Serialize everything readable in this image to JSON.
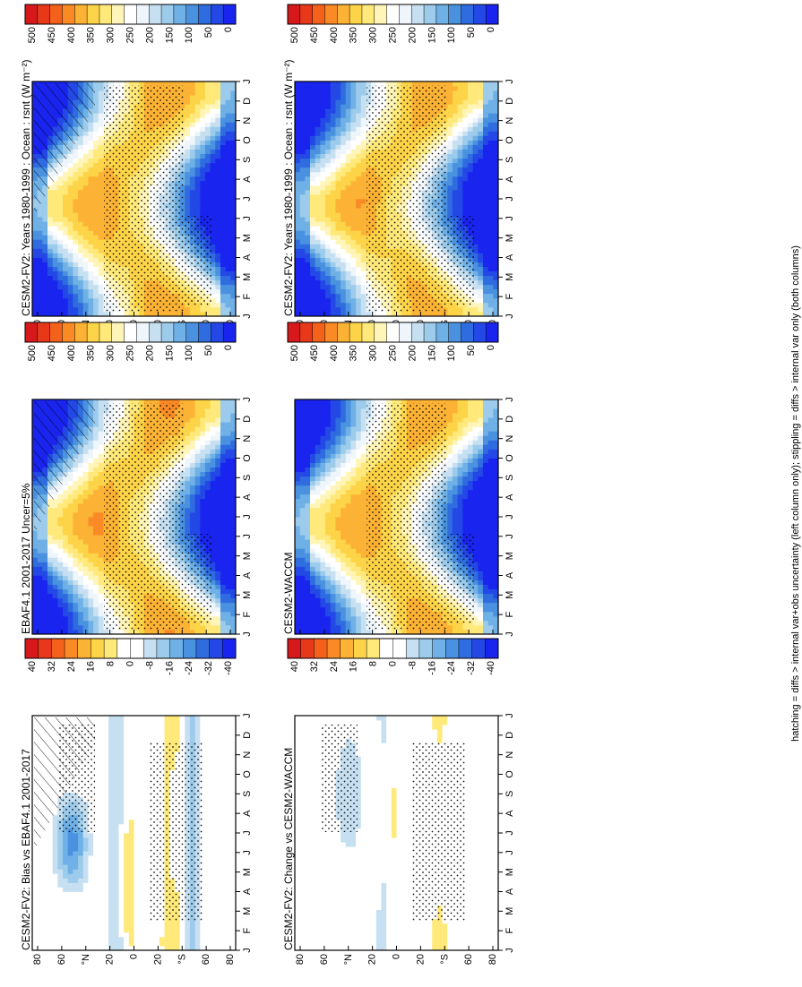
{
  "chart_data": [
    {
      "type": "heatmap",
      "panel": "top-left",
      "title": "CESM2-FV2: Years 1980-1999 : Ocean : rsnt (W m⁻²)",
      "months": [
        "J",
        "F",
        "M",
        "A",
        "M",
        "J",
        "J",
        "A",
        "S",
        "O",
        "N",
        "D",
        "J"
      ],
      "lat_ticks": [
        "80",
        "60",
        "°N",
        "20",
        "0",
        "20",
        "°S",
        "60",
        "80"
      ],
      "colorbar_labels": [
        "500",
        "450",
        "400",
        "350",
        "300",
        "250",
        "200",
        "150",
        "100",
        "50",
        "0"
      ],
      "zlim": [
        0,
        525
      ],
      "overlay": [
        "hatching",
        "stippling"
      ]
    },
    {
      "type": "heatmap",
      "panel": "top-right",
      "title": "CESM2-FV2: Years 1980-1999 : Ocean : rsnt (W m⁻²)",
      "months": [
        "J",
        "F",
        "M",
        "A",
        "M",
        "J",
        "J",
        "A",
        "S",
        "O",
        "N",
        "D",
        "J"
      ],
      "lat_ticks": [
        "80",
        "60",
        "°N",
        "20",
        "0",
        "20",
        "°S",
        "60",
        "80"
      ],
      "colorbar_labels": [
        "500",
        "450",
        "400",
        "350",
        "300",
        "250",
        "200",
        "150",
        "100",
        "50",
        "0"
      ],
      "zlim": [
        0,
        525
      ],
      "overlay": [
        "stippling"
      ]
    },
    {
      "type": "heatmap",
      "panel": "middle-left",
      "title": "EBAF4.1 2001-2017 Uncer=5%",
      "months": [
        "J",
        "F",
        "M",
        "A",
        "M",
        "J",
        "J",
        "A",
        "S",
        "O",
        "N",
        "D",
        "J"
      ],
      "lat_ticks": [
        "80",
        "60",
        "°N",
        "20",
        "0",
        "20",
        "°S",
        "60",
        "80"
      ],
      "colorbar_labels": [
        "500",
        "450",
        "400",
        "350",
        "300",
        "250",
        "200",
        "150",
        "100",
        "50",
        "0"
      ],
      "zlim": [
        0,
        525
      ],
      "overlay": [
        "hatching",
        "stippling"
      ]
    },
    {
      "type": "heatmap",
      "panel": "middle-right",
      "title": "CESM2-WACCM",
      "months": [
        "J",
        "F",
        "M",
        "A",
        "M",
        "J",
        "J",
        "A",
        "S",
        "O",
        "N",
        "D",
        "J"
      ],
      "lat_ticks": [
        "80",
        "60",
        "°N",
        "20",
        "0",
        "20",
        "°S",
        "60",
        "80"
      ],
      "colorbar_labels": [
        "500",
        "450",
        "400",
        "350",
        "300",
        "250",
        "200",
        "150",
        "100",
        "50",
        "0"
      ],
      "zlim": [
        0,
        525
      ],
      "overlay": [
        "stippling"
      ]
    },
    {
      "type": "heatmap",
      "panel": "bottom-left",
      "title": "CESM2-FV2: Bias vs EBAF4.1 2001-2017",
      "months": [
        "J",
        "F",
        "M",
        "A",
        "M",
        "J",
        "J",
        "A",
        "S",
        "O",
        "N",
        "D",
        "J"
      ],
      "lat_ticks": [
        "80",
        "60",
        "°N",
        "20",
        "0",
        "20",
        "°S",
        "60",
        "80"
      ],
      "colorbar_labels": [
        "40",
        "32",
        "24",
        "16",
        "8",
        "0",
        "-8",
        "-16",
        "-24",
        "-32",
        "-40"
      ],
      "zlim": [
        -44,
        44
      ],
      "overlay": [
        "hatching",
        "stippling"
      ]
    },
    {
      "type": "heatmap",
      "panel": "bottom-right",
      "title": "CESM2-FV2: Change vs CESM2-WACCM",
      "months": [
        "J",
        "F",
        "M",
        "A",
        "M",
        "J",
        "J",
        "A",
        "S",
        "O",
        "N",
        "D",
        "J"
      ],
      "lat_ticks": [
        "80",
        "60",
        "°N",
        "20",
        "0",
        "20",
        "°S",
        "60",
        "80"
      ],
      "colorbar_labels": [
        "40",
        "32",
        "24",
        "16",
        "8",
        "0",
        "-8",
        "-16",
        "-24",
        "-32",
        "-40"
      ],
      "zlim": [
        -44,
        44
      ],
      "overlay": [
        "stippling"
      ]
    }
  ],
  "footnote": "hatching = diffs > internal var+obs uncertainty (left column only); stippling = diffs > internal var only (both columns)",
  "colors": {
    "abs_scale": [
      "#d7191c",
      "#e8381a",
      "#f4611b",
      "#f98a26",
      "#fcb234",
      "#fdd348",
      "#fee97a",
      "#fff5b8",
      "#ffffff",
      "#eef5fb",
      "#c6e0f2",
      "#9ccbeb",
      "#6fb1e6",
      "#4a91e0",
      "#2f6ce0",
      "#2348e6",
      "#1a24ef"
    ],
    "diff_scale": [
      "#d7191c",
      "#e8381a",
      "#f4611b",
      "#f98a26",
      "#fcb234",
      "#fdd348",
      "#fee97a",
      "#ffffff",
      "#ffffff",
      "#c6e0f2",
      "#9ccbeb",
      "#6fb1e6",
      "#4a91e0",
      "#2f6ce0",
      "#2348e6",
      "#1a24ef"
    ]
  }
}
